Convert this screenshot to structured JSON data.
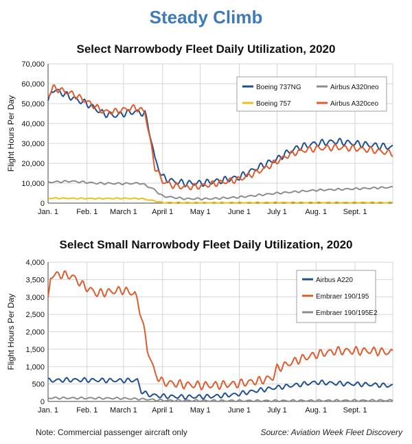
{
  "title": "Steady Climb",
  "note": "Note: Commercial passenger aircraft only",
  "source": "Source: Aviation Week Fleet Discovery",
  "chart_data": [
    {
      "type": "line",
      "title": "Select Narrowbody Fleet Daily Utilization, 2020",
      "ylabel": "Flight Hours Per Day",
      "ylim": [
        0,
        70000
      ],
      "yticks": [
        0,
        10000,
        20000,
        30000,
        40000,
        50000,
        60000,
        70000
      ],
      "ytick_labels": [
        "0",
        "10,000",
        "20,000",
        "30,000",
        "40,000",
        "50,000",
        "60,000",
        "70,000"
      ],
      "xlim": [
        1,
        275
      ],
      "xticks": [
        1,
        32,
        61,
        92,
        122,
        153,
        183,
        214,
        245
      ],
      "xtick_labels": [
        "Jan. 1",
        "Feb. 1",
        "March 1",
        "April 1",
        "May 1",
        "June 1",
        "July 1",
        "Aug. 1",
        "Sept. 1"
      ],
      "legend_position": "top-right",
      "grid": true,
      "series": [
        {
          "name": "Boeing 737NG",
          "color": "#1f4f8f",
          "x": [
            1,
            4,
            10,
            20,
            32,
            45,
            55,
            61,
            70,
            78,
            82,
            86,
            92,
            100,
            110,
            122,
            135,
            153,
            165,
            175,
            183,
            190,
            200,
            214,
            230,
            245,
            260,
            275
          ],
          "y": [
            50000,
            57000,
            56000,
            53000,
            50000,
            45000,
            44000,
            45000,
            46000,
            45000,
            35000,
            22000,
            13000,
            11000,
            10000,
            10000,
            11000,
            13000,
            17000,
            20000,
            22000,
            25000,
            28000,
            30000,
            31000,
            30000,
            29000,
            28000
          ],
          "wiggle": 1800
        },
        {
          "name": "Airbus A320neo",
          "color": "#8c8c8c",
          "x": [
            1,
            20,
            40,
            61,
            75,
            85,
            92,
            110,
            130,
            153,
            183,
            214,
            245,
            275
          ],
          "y": [
            10500,
            11000,
            10000,
            9800,
            10000,
            7000,
            3500,
            2200,
            2200,
            3000,
            5000,
            6500,
            7200,
            8000
          ],
          "wiggle": 500
        },
        {
          "name": "Boeing 757",
          "color": "#e8c21a",
          "x": [
            1,
            20,
            40,
            61,
            75,
            85,
            92,
            120,
            183,
            275
          ],
          "y": [
            2500,
            2400,
            2300,
            2400,
            2300,
            1200,
            300,
            200,
            300,
            300
          ],
          "wiggle": 300
        },
        {
          "name": "Airbus A320ceo",
          "color": "#e05a2b",
          "x": [
            1,
            5,
            10,
            20,
            32,
            45,
            55,
            61,
            70,
            78,
            82,
            86,
            92,
            100,
            110,
            122,
            135,
            153,
            165,
            175,
            183,
            190,
            200,
            214,
            230,
            245,
            260,
            275
          ],
          "y": [
            54000,
            58000,
            57000,
            55000,
            51000,
            46000,
            46000,
            47000,
            48000,
            46000,
            32000,
            18000,
            11000,
            9000,
            8000,
            8500,
            10000,
            12000,
            15000,
            18000,
            21000,
            23500,
            26000,
            27500,
            28000,
            27500,
            26500,
            25000
          ],
          "wiggle": 1700
        }
      ]
    },
    {
      "type": "line",
      "title": "Select Small Narrowbody Fleet Daily Utilization, 2020",
      "ylabel": "Flight Hours Per Day",
      "ylim": [
        0,
        4000
      ],
      "yticks": [
        0,
        500,
        1000,
        1500,
        2000,
        2500,
        3000,
        3500,
        4000
      ],
      "ytick_labels": [
        "0",
        "500",
        "1,000",
        "1,500",
        "2,000",
        "2,500",
        "3,000",
        "3,500",
        "4,000"
      ],
      "xlim": [
        1,
        275
      ],
      "xticks": [
        1,
        32,
        61,
        92,
        122,
        153,
        183,
        214,
        245
      ],
      "xtick_labels": [
        "Jan. 1",
        "Feb. 1",
        "March 1",
        "April 1",
        "May 1",
        "June 1",
        "July 1",
        "Aug. 1",
        "Sept. 1"
      ],
      "legend_position": "top-right",
      "grid": true,
      "series": [
        {
          "name": "Airbus A220",
          "color": "#1f4f8f",
          "x": [
            1,
            20,
            40,
            60,
            72,
            75,
            80,
            92,
            110,
            130,
            150,
            165,
            183,
            200,
            214,
            230,
            245,
            260,
            275
          ],
          "y": [
            600,
            620,
            610,
            600,
            610,
            300,
            200,
            150,
            130,
            140,
            200,
            300,
            400,
            480,
            550,
            520,
            500,
            480,
            450
          ],
          "wiggle": 70
        },
        {
          "name": "Embraer 190/195",
          "color": "#e05a2b",
          "x": [
            1,
            3,
            10,
            20,
            30,
            40,
            50,
            60,
            70,
            75,
            80,
            86,
            92,
            110,
            130,
            150,
            170,
            180,
            183,
            190,
            200,
            214,
            230,
            245,
            260,
            275
          ],
          "y": [
            2900,
            3600,
            3650,
            3600,
            3300,
            3100,
            3150,
            3200,
            3100,
            2500,
            1500,
            800,
            550,
            480,
            460,
            500,
            600,
            700,
            950,
            1050,
            1200,
            1350,
            1450,
            1450,
            1450,
            1400
          ],
          "wiggle": 130
        },
        {
          "name": "Embraer 190/195E2",
          "color": "#8c8c8c",
          "x": [
            1,
            60,
            80,
            92,
            140,
            183,
            275
          ],
          "y": [
            100,
            90,
            60,
            30,
            20,
            20,
            30
          ],
          "wiggle": 30
        }
      ]
    }
  ]
}
